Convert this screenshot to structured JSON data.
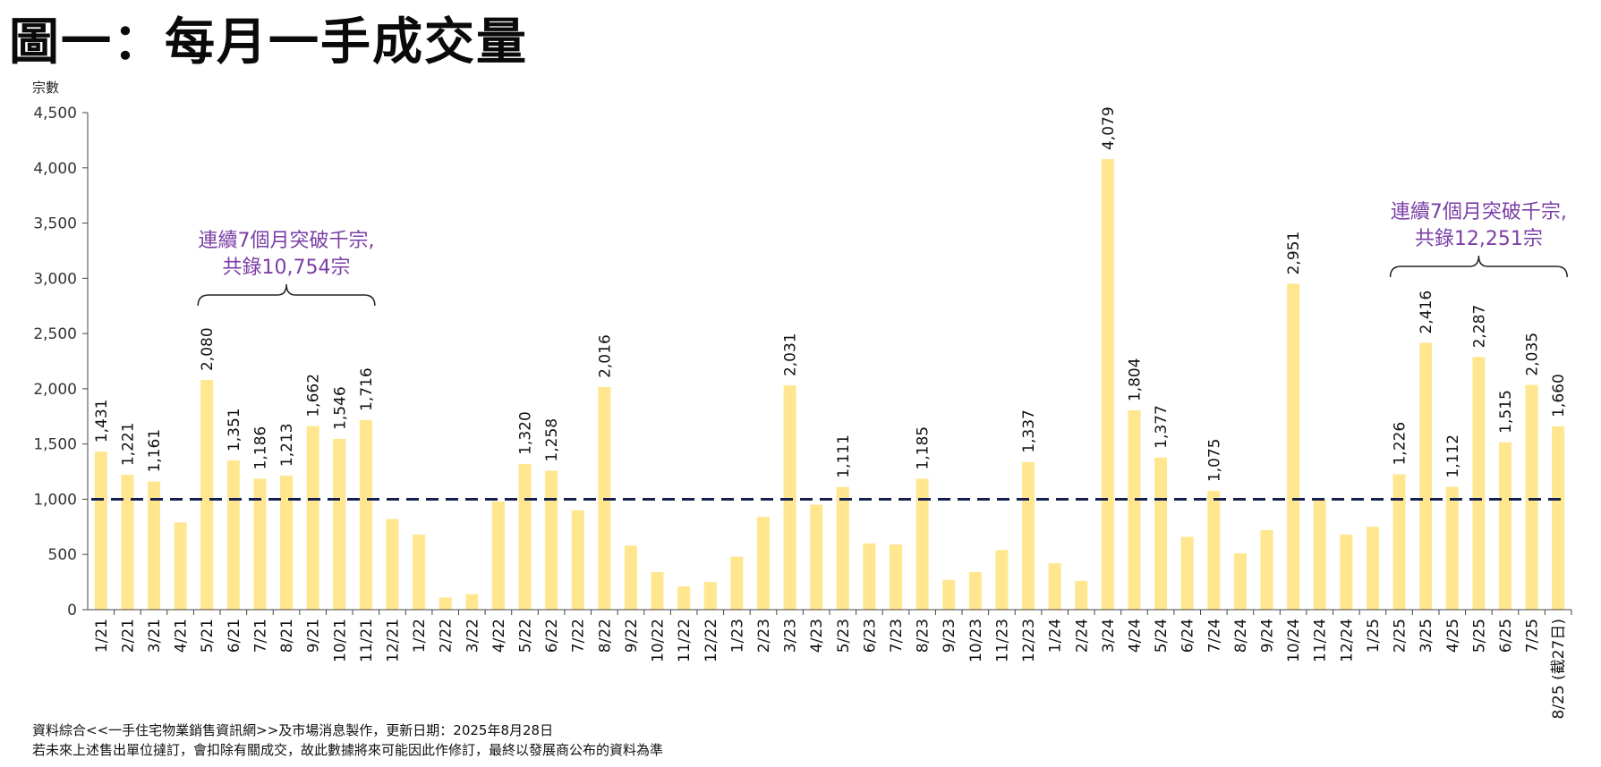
{
  "title": "圖一：每月一手成交量",
  "colors": {
    "bar": "#FFE68F",
    "threshold_line": "#14214E",
    "annotation": "#7B3FA6",
    "axis": "#444444"
  },
  "annotations": [
    {
      "line1": "連續7個月突破千宗,",
      "line2": "共錄10,754宗",
      "from_index": 4,
      "to_index": 10
    },
    {
      "line1": "連續7個月突破千宗,",
      "line2": "共錄12,251宗",
      "from_index": 49,
      "to_index": 55
    }
  ],
  "footnotes": [
    "資料綜合<<一手住宅物業銷售資訊網>>及市場消息製作，更新日期：2025年8月28日",
    "若未來上述售出單位撻訂，會扣除有關成交，故此數據將來可能因此作修訂，最終以發展商公布的資料為準"
  ],
  "chart_data": {
    "type": "bar",
    "title": "圖一：每月一手成交量",
    "ylabel": "宗數",
    "xlabel": "",
    "ylim": [
      0,
      4500
    ],
    "yticks": [
      0,
      500,
      1000,
      1500,
      2000,
      2500,
      3000,
      3500,
      4000,
      4500
    ],
    "ytick_labels": [
      "0",
      "500",
      "1,000",
      "1,500",
      "2,000",
      "2,500",
      "3,000",
      "3,500",
      "4,000",
      "4,500"
    ],
    "grid": false,
    "legend": "none",
    "reference_line": {
      "y": 1000,
      "style": "dashed"
    },
    "categories": [
      "1/21",
      "2/21",
      "3/21",
      "4/21",
      "5/21",
      "6/21",
      "7/21",
      "8/21",
      "9/21",
      "10/21",
      "11/21",
      "12/21",
      "1/22",
      "2/22",
      "3/22",
      "4/22",
      "5/22",
      "6/22",
      "7/22",
      "8/22",
      "9/22",
      "10/22",
      "11/22",
      "12/22",
      "1/23",
      "2/23",
      "3/23",
      "4/23",
      "5/23",
      "6/23",
      "7/23",
      "8/23",
      "9/23",
      "10/23",
      "11/23",
      "12/23",
      "1/24",
      "2/24",
      "3/24",
      "4/24",
      "5/24",
      "6/24",
      "7/24",
      "8/24",
      "9/24",
      "10/24",
      "11/24",
      "12/24",
      "1/25",
      "2/25",
      "3/25",
      "4/25",
      "5/25",
      "6/25",
      "7/25",
      "8/25 (截27日)"
    ],
    "values": [
      1431,
      1221,
      1161,
      790,
      2080,
      1351,
      1186,
      1213,
      1662,
      1546,
      1716,
      820,
      680,
      110,
      140,
      980,
      1320,
      1258,
      900,
      2016,
      580,
      340,
      210,
      250,
      480,
      840,
      2031,
      950,
      1111,
      600,
      590,
      1185,
      270,
      340,
      540,
      1337,
      420,
      260,
      4079,
      1804,
      1377,
      660,
      1075,
      510,
      720,
      2951,
      1000,
      680,
      750,
      1226,
      2416,
      1112,
      2287,
      1515,
      2035,
      1660
    ],
    "data_labels": [
      "1,431",
      "1,221",
      "1,161",
      "",
      "2,080",
      "1,351",
      "1,186",
      "1,213",
      "1,662",
      "1,546",
      "1,716",
      "",
      "",
      "",
      "",
      "",
      "1,320",
      "1,258",
      "",
      "2,016",
      "",
      "",
      "",
      "",
      "",
      "",
      "2,031",
      "",
      "1,111",
      "",
      "",
      "1,185",
      "",
      "",
      "",
      "1,337",
      "",
      "",
      "4,079",
      "1,804",
      "1,377",
      "",
      "1,075",
      "",
      "",
      "2,951",
      "",
      "",
      "",
      "1,226",
      "2,416",
      "1,112",
      "2,287",
      "1,515",
      "2,035",
      "1,660"
    ]
  }
}
